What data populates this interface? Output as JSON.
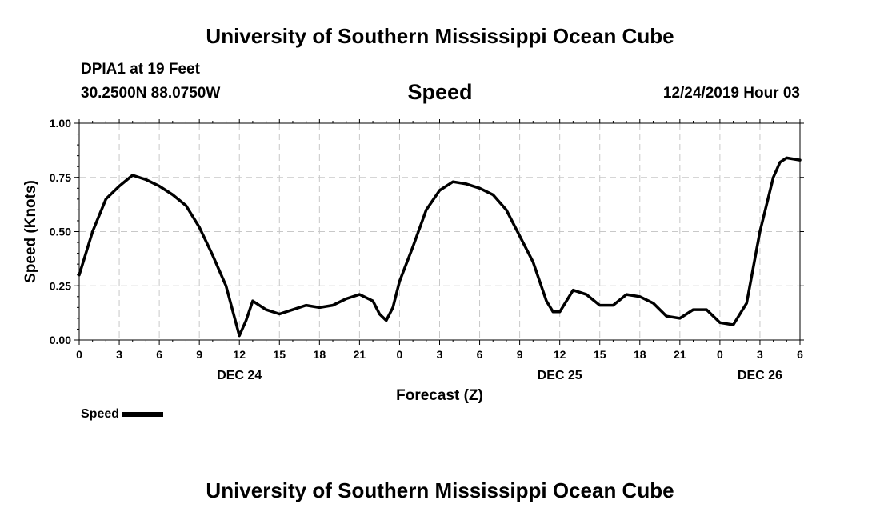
{
  "header": {
    "title": "University of Southern Mississippi Ocean Cube",
    "station": "DPIA1 at 19 Feet",
    "coords": "30.2500N 88.0750W",
    "parameter": "Speed",
    "datetime": "12/24/2019 Hour 03"
  },
  "footer": {
    "title": "University of Southern Mississippi Ocean Cube"
  },
  "legend": {
    "label": "Speed",
    "color": "#000000"
  },
  "chart_data": {
    "type": "line",
    "title": "Speed",
    "xlabel": "Forecast (Z)",
    "ylabel": "Speed (Knots)",
    "x_unit": "hours since DEC 24 00Z",
    "xlim": [
      0,
      54
    ],
    "ylim": [
      0,
      1.0
    ],
    "y_ticks": [
      0.0,
      0.25,
      0.5,
      0.75,
      1.0
    ],
    "y_tick_labels": [
      "0.00",
      "0.25",
      "0.50",
      "0.75",
      "1.00"
    ],
    "x_ticks": [
      0,
      3,
      6,
      9,
      12,
      15,
      18,
      21,
      24,
      27,
      30,
      33,
      36,
      39,
      42,
      45,
      48,
      51,
      54
    ],
    "x_tick_labels": [
      "0",
      "3",
      "6",
      "9",
      "12",
      "15",
      "18",
      "21",
      "0",
      "3",
      "6",
      "9",
      "12",
      "15",
      "18",
      "21",
      "0",
      "3",
      "6"
    ],
    "date_labels": [
      {
        "x": 12,
        "label": "DEC 24"
      },
      {
        "x": 36,
        "label": "DEC 25"
      },
      {
        "x": 51,
        "label": "DEC 26"
      }
    ],
    "grid": true,
    "series": [
      {
        "name": "Speed",
        "color": "#000000",
        "x": [
          0,
          1,
          2,
          3,
          4,
          5,
          6,
          7,
          8,
          9,
          10,
          11,
          12,
          12.5,
          13,
          14,
          15,
          16,
          17,
          18,
          19,
          20,
          21,
          22,
          22.5,
          23,
          23.5,
          24,
          25,
          26,
          27,
          28,
          29,
          30,
          31,
          32,
          33,
          34,
          35,
          35.5,
          36,
          37,
          38,
          39,
          40,
          41,
          42,
          43,
          44,
          45,
          46,
          47,
          48,
          49,
          50,
          51,
          52,
          52.5,
          53,
          54
        ],
        "values": [
          0.3,
          0.5,
          0.65,
          0.71,
          0.76,
          0.74,
          0.71,
          0.67,
          0.62,
          0.52,
          0.39,
          0.25,
          0.02,
          0.09,
          0.18,
          0.14,
          0.12,
          0.14,
          0.16,
          0.15,
          0.16,
          0.19,
          0.21,
          0.18,
          0.12,
          0.09,
          0.15,
          0.27,
          0.43,
          0.6,
          0.69,
          0.73,
          0.72,
          0.7,
          0.67,
          0.6,
          0.48,
          0.36,
          0.18,
          0.13,
          0.13,
          0.23,
          0.21,
          0.16,
          0.16,
          0.21,
          0.2,
          0.17,
          0.11,
          0.1,
          0.14,
          0.14,
          0.08,
          0.07,
          0.17,
          0.5,
          0.75,
          0.82,
          0.84,
          0.83
        ]
      }
    ]
  }
}
